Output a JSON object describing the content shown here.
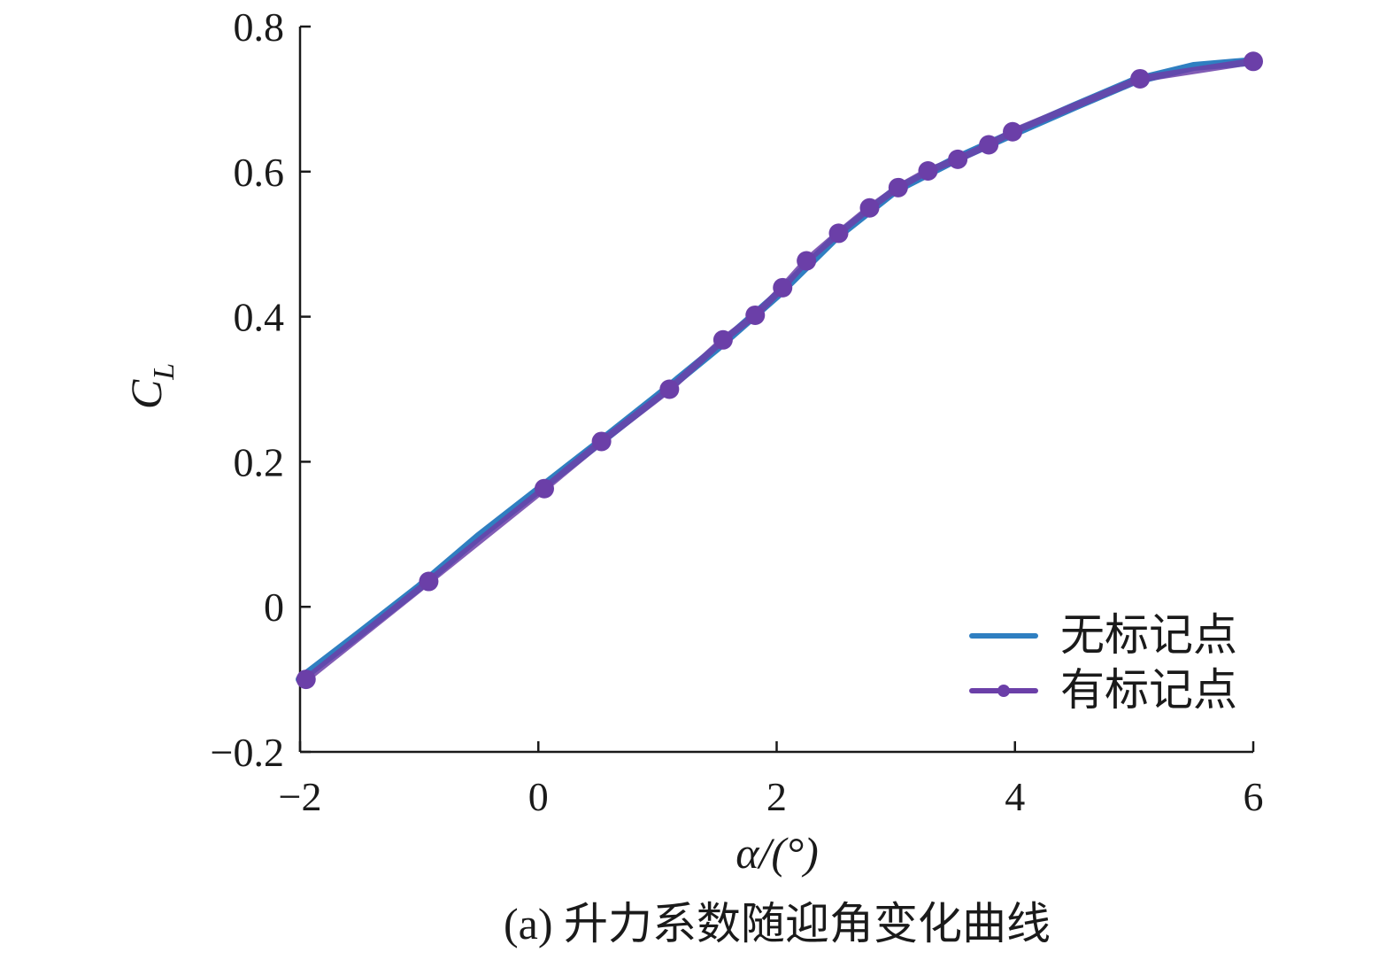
{
  "chart_data": {
    "type": "line",
    "xlabel": "α/(°)",
    "ylabel_main": "C",
    "ylabel_sub": "L",
    "caption": "(a) 升力系数随迎角变化曲线",
    "xlim": [
      -2,
      6
    ],
    "ylim": [
      -0.2,
      0.8
    ],
    "x_ticks": [
      -2,
      0,
      2,
      4,
      6
    ],
    "x_tick_labels": [
      "−2",
      "0",
      "2",
      "4",
      "6"
    ],
    "y_ticks": [
      -0.2,
      0,
      0.2,
      0.4,
      0.6,
      0.8
    ],
    "y_tick_labels": [
      "−0.2",
      "0",
      "0.2",
      "0.4",
      "0.6",
      "0.8"
    ],
    "legend_position": "bottom-right",
    "grid": false,
    "series": [
      {
        "name": "无标记点",
        "color": "#2f7fc1",
        "marker": "none",
        "x": [
          -2,
          -1.5,
          -1,
          -0.5,
          0,
          0.5,
          1,
          1.5,
          2,
          2.5,
          3,
          3.5,
          4,
          4.5,
          5,
          5.5,
          6
        ],
        "y": [
          -0.1,
          -0.037,
          0.027,
          0.097,
          0.161,
          0.225,
          0.29,
          0.357,
          0.429,
          0.51,
          0.575,
          0.617,
          0.654,
          0.69,
          0.725,
          0.745,
          0.752
        ]
      },
      {
        "name": "有标记点",
        "color": "#6b3fa8",
        "marker": "circle",
        "x": [
          -1.95,
          -0.92,
          0.05,
          0.53,
          1.1,
          1.55,
          1.82,
          2.05,
          2.25,
          2.52,
          2.78,
          3.02,
          3.27,
          3.52,
          3.78,
          3.98,
          5.05,
          6
        ],
        "y": [
          -0.1,
          0.035,
          0.163,
          0.228,
          0.3,
          0.368,
          0.402,
          0.44,
          0.477,
          0.515,
          0.55,
          0.578,
          0.601,
          0.617,
          0.637,
          0.655,
          0.728,
          0.752
        ]
      }
    ]
  }
}
